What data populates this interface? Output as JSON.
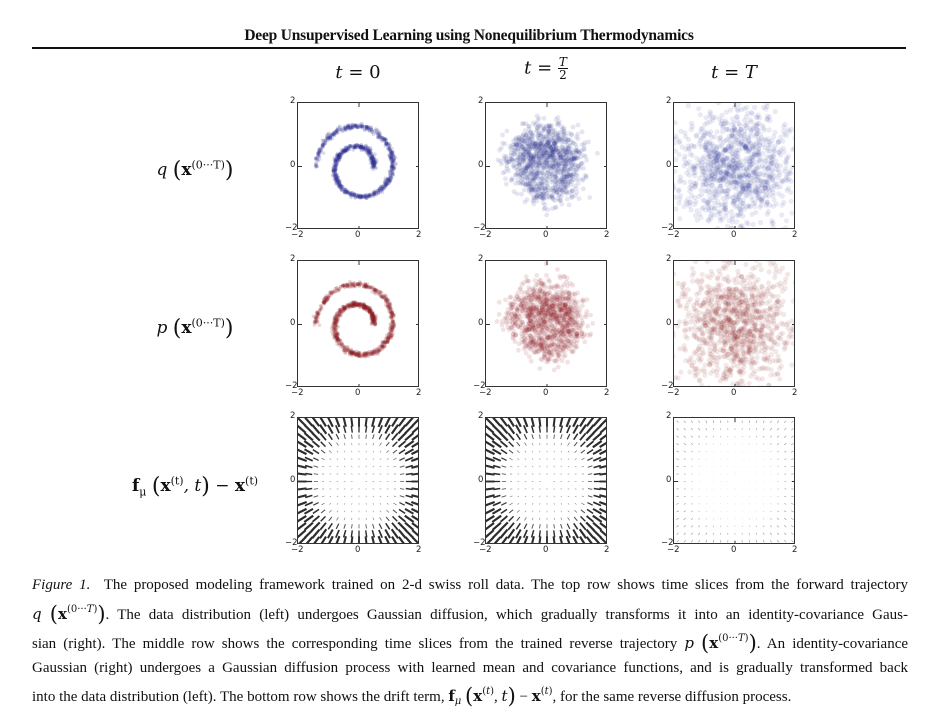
{
  "header": {
    "title": "Deep Unsupervised Learning using Nonequilibrium Thermodynamics"
  },
  "columns": [
    {
      "label_prefix": "t = ",
      "label_value": "0"
    },
    {
      "label_prefix": "t = ",
      "label_num": "T",
      "label_den": "2"
    },
    {
      "label_prefix": "t = ",
      "label_value": "T"
    }
  ],
  "rows": [
    {
      "func": "q",
      "arg": "x",
      "superscript": "(0···T)",
      "color": "#2b2f8f"
    },
    {
      "func": "p",
      "arg": "x",
      "superscript": "(0···T)",
      "color": "#8b1a1f"
    },
    {
      "func": "f",
      "func_sub": "μ",
      "arg": "x",
      "superscript": "(t)",
      "extra": ", t",
      "minus": " − ",
      "arg2": "x",
      "superscript2": "(t)",
      "color": "#222222"
    }
  ],
  "axes": {
    "xticks": [
      "−2",
      "0",
      "2"
    ],
    "yticks": [
      "2",
      "0",
      "−2"
    ],
    "xlim": [
      -2,
      2
    ],
    "ylim": [
      -2,
      2
    ]
  },
  "caption": {
    "label": "Figure 1.",
    "line1": "The proposed modeling framework trained on 2-d swiss roll data. The top row shows time slices from the forward trajectory",
    "line2_math": "q (x(0···T))",
    "line2": ". The data distribution (left) undergoes Gaussian diffusion, which gradually transforms it into an identity-covariance Gaus-",
    "line3a": "sian (right). The middle row shows the corresponding time slices from the trained reverse trajectory",
    "line3_math": "p (x(0···T))",
    "line3b": ". An identity-covariance",
    "line4": "Gaussian (right) undergoes a Gaussian diffusion process with learned mean and covariance functions, and is gradually transformed back",
    "line5a": "into the data distribution (left). The bottom row shows the drift term,",
    "line5_math": "fμ (x(t), t) − x(t)",
    "line5b": ", for the same reverse diffusion process."
  },
  "chart_data": [
    {
      "type": "scatter",
      "title": "q(x^(0···T)) at t = 0",
      "description": "Swiss roll spiral, tight, blue",
      "xlim": [
        -2,
        2
      ],
      "ylim": [
        -2,
        2
      ],
      "color": "#2b2f8f"
    },
    {
      "type": "scatter",
      "title": "q(x^(0···T)) at t = T/2",
      "description": "Diffused swiss roll, blue",
      "xlim": [
        -2,
        2
      ],
      "ylim": [
        -2,
        2
      ],
      "color": "#2b2f8f"
    },
    {
      "type": "scatter",
      "title": "q(x^(0···T)) at t = T",
      "description": "Identity-covariance Gaussian, blue",
      "xlim": [
        -2,
        2
      ],
      "ylim": [
        -2,
        2
      ],
      "color": "#2b2f8f"
    },
    {
      "type": "scatter",
      "title": "p(x^(0···T)) at t = 0",
      "description": "Reconstructed swiss roll, red",
      "xlim": [
        -2,
        2
      ],
      "ylim": [
        -2,
        2
      ],
      "color": "#8b1a1f"
    },
    {
      "type": "scatter",
      "title": "p(x^(0···T)) at t = T/2",
      "description": "Partially diffused swiss roll, red",
      "xlim": [
        -2,
        2
      ],
      "ylim": [
        -2,
        2
      ],
      "color": "#8b1a1f"
    },
    {
      "type": "scatter",
      "title": "p(x^(0···T)) at t = T",
      "description": "Gaussian, red",
      "xlim": [
        -2,
        2
      ],
      "ylim": [
        -2,
        2
      ],
      "color": "#8b1a1f"
    },
    {
      "type": "quiver",
      "title": "f_mu(x^(t), t) - x^(t) at t = 0",
      "description": "Strong drift field toward spiral",
      "xlim": [
        -2,
        2
      ],
      "ylim": [
        -2,
        2
      ]
    },
    {
      "type": "quiver",
      "title": "f_mu(x^(t), t) - x^(t) at t = T/2",
      "description": "Strong drift field toward spiral",
      "xlim": [
        -2,
        2
      ],
      "ylim": [
        -2,
        2
      ]
    },
    {
      "type": "quiver",
      "title": "f_mu(x^(t), t) - x^(t) at t = T",
      "description": "Weak drift field",
      "xlim": [
        -2,
        2
      ],
      "ylim": [
        -2,
        2
      ]
    }
  ]
}
